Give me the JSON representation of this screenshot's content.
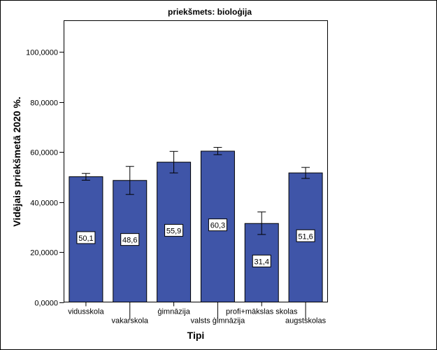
{
  "chart_data": {
    "type": "bar",
    "title": "priekšmets: bioloģija",
    "xlabel": "Tipi",
    "ylabel": "Vidējais priekšmetā 2020 %.",
    "categories": [
      "vidusskola",
      "vakarskola",
      "ģimnāzija",
      "valsts ģimnāzija",
      "profi+mākslas skolas",
      "augstskolas"
    ],
    "values": [
      50.1,
      48.6,
      55.9,
      60.3,
      31.4,
      51.6
    ],
    "data_labels": [
      "50,1",
      "48,6",
      "55,9",
      "60,3",
      "31,4",
      "51,6"
    ],
    "error_bars": [
      {
        "low": 48.7,
        "high": 51.4
      },
      {
        "low": 43.0,
        "high": 54.2
      },
      {
        "low": 51.6,
        "high": 60.2
      },
      {
        "low": 58.9,
        "high": 61.8
      },
      {
        "low": 27.0,
        "high": 36.0
      },
      {
        "low": 49.4,
        "high": 53.8
      }
    ],
    "ylim": [
      0,
      112
    ],
    "yticks": [
      0,
      20,
      40,
      60,
      80,
      100
    ],
    "ytick_labels": [
      "0,0000",
      "20,0000",
      "40,0000",
      "60,0000",
      "80,0000",
      "100,0000"
    ],
    "bar_color": "#3f55a8",
    "grid": false
  }
}
